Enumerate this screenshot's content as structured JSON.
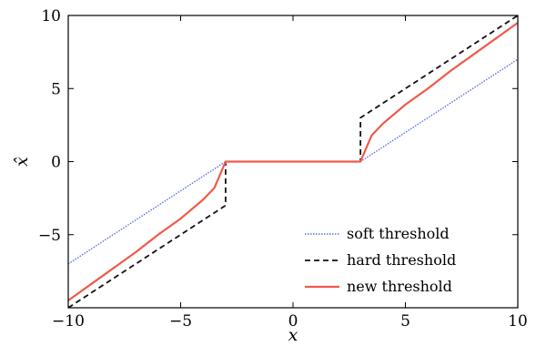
{
  "chart_data": {
    "type": "line",
    "title": "",
    "xlabel": "x",
    "ylabel": "x̂",
    "xlim": [
      -10,
      10
    ],
    "ylim": [
      -10,
      10
    ],
    "xticks": [
      -10,
      -5,
      0,
      5,
      10
    ],
    "yticks": [
      -5,
      0,
      5,
      10
    ],
    "xtick_labels": [
      "−10",
      "−5",
      "0",
      "5",
      "10"
    ],
    "ytick_labels": [
      "−5",
      "0",
      "5",
      "10"
    ],
    "grid": false,
    "legend_position": "lower-right",
    "threshold": 3,
    "series": [
      {
        "name": "soft threshold",
        "color": "#5b6ee1",
        "style": "dotted",
        "x": [
          -10,
          -3,
          3,
          10
        ],
        "y": [
          -7,
          0,
          0,
          7
        ]
      },
      {
        "name": "hard threshold",
        "color": "#111111",
        "style": "dashed",
        "x": [
          -10,
          -3,
          -3,
          3,
          3,
          10
        ],
        "y": [
          -10,
          -3,
          0,
          0,
          3,
          10
        ]
      },
      {
        "name": "new threshold",
        "color": "#f05a4a",
        "style": "solid",
        "x": [
          -10,
          -9,
          -8,
          -7,
          -6,
          -5,
          -4,
          -3.5,
          -3,
          3,
          3.5,
          4,
          5,
          6,
          7,
          8,
          9,
          10
        ],
        "y": [
          -9.5,
          -8.4,
          -7.3,
          -6.2,
          -5.0,
          -3.9,
          -2.6,
          -1.8,
          0,
          0,
          1.8,
          2.6,
          3.9,
          5.0,
          6.2,
          7.3,
          8.4,
          9.5
        ]
      }
    ]
  }
}
